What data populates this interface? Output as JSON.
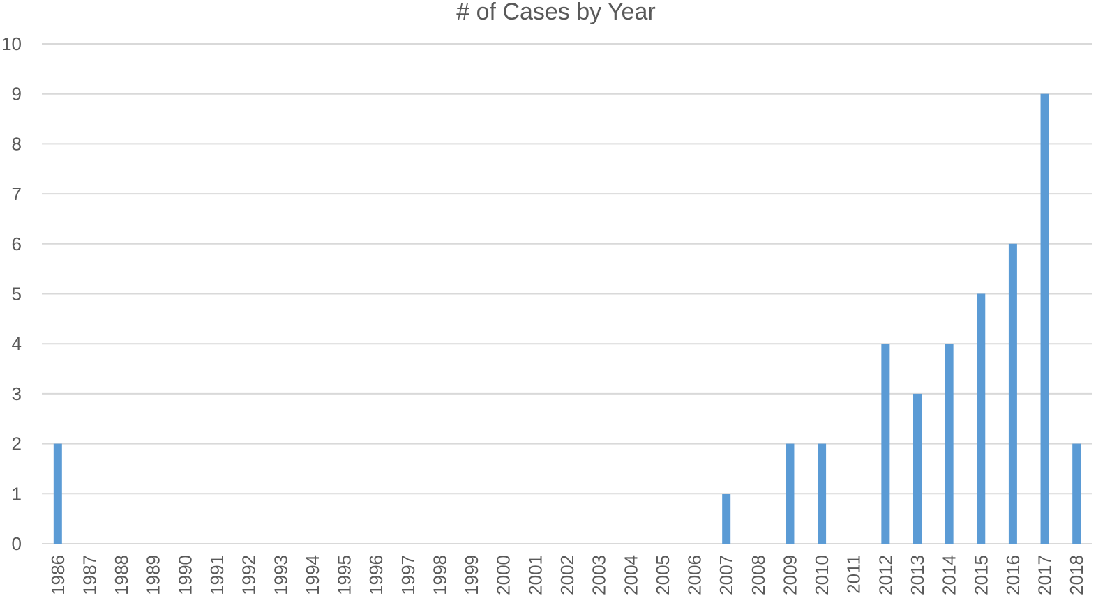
{
  "chart_data": {
    "type": "bar",
    "title": "# of Cases by Year",
    "xlabel": "",
    "ylabel": "",
    "ylim": [
      0,
      10
    ],
    "yticks": [
      0,
      1,
      2,
      3,
      4,
      5,
      6,
      7,
      8,
      9,
      10
    ],
    "grid": true,
    "legend": "none",
    "categories": [
      "1986",
      "1987",
      "1988",
      "1989",
      "1990",
      "1991",
      "1992",
      "1993",
      "1994",
      "1995",
      "1996",
      "1997",
      "1998",
      "1999",
      "2000",
      "2001",
      "2002",
      "2003",
      "2004",
      "2005",
      "2006",
      "2007",
      "2008",
      "2009",
      "2010",
      "2011",
      "2012",
      "2013",
      "2014",
      "2015",
      "2016",
      "2017",
      "2018"
    ],
    "values": [
      2,
      0,
      0,
      0,
      0,
      0,
      0,
      0,
      0,
      0,
      0,
      0,
      0,
      0,
      0,
      0,
      0,
      0,
      0,
      0,
      0,
      1,
      0,
      2,
      2,
      0,
      4,
      3,
      4,
      5,
      6,
      9,
      2
    ],
    "bar_color": "#5B9BD5",
    "grid_color": "#D9D9D9",
    "text_color": "#595959"
  }
}
